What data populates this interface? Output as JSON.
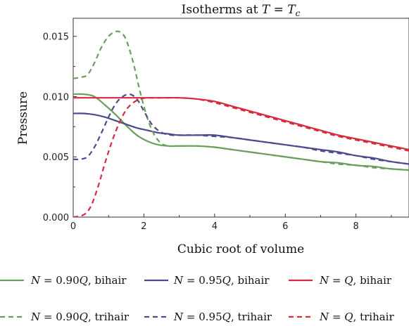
{
  "chart_data": {
    "type": "line",
    "title": "Isotherms at T = T_c",
    "title_parts": {
      "prefix": "Isotherms at ",
      "var1": "T",
      "eq": " = ",
      "var2": "T",
      "sub": "c"
    },
    "xlabel": "Cubic root of volume",
    "ylabel": "Pressure",
    "xlim": [
      0,
      9.5
    ],
    "ylim": [
      0,
      0.0165
    ],
    "x_ticks": [
      0,
      2,
      4,
      6,
      8
    ],
    "x_tick_labels": [
      "0",
      "2",
      "4",
      "6",
      "8"
    ],
    "y_ticks": [
      0,
      0.005,
      0.01,
      0.015
    ],
    "y_tick_labels": [
      "0.000",
      "0.005",
      "0.010",
      "0.015"
    ],
    "grid": false,
    "legend_position": "bottom",
    "colors": {
      "green": "#6a9e5e",
      "blue": "#4b4c8f",
      "red": "#d62a3d"
    },
    "series": [
      {
        "name": "N = 0.90Q, bihair",
        "label_parts": {
          "var": "N",
          "mid": " = 0.90",
          "var2": "Q",
          "suffix": ", bihair"
        },
        "color": "green",
        "style": "solid",
        "x": [
          0,
          0.3,
          0.6,
          0.9,
          1.2,
          1.5,
          1.8,
          2.1,
          2.4,
          2.7,
          3.0,
          3.5,
          4.0,
          4.5,
          5.0,
          5.5,
          6.0,
          6.5,
          7.0,
          7.5,
          8.0,
          8.5,
          9.0,
          9.5
        ],
        "y": [
          0.0102,
          0.0102,
          0.01,
          0.0093,
          0.0085,
          0.0076,
          0.0068,
          0.0063,
          0.006,
          0.0059,
          0.0059,
          0.0059,
          0.0058,
          0.0056,
          0.0054,
          0.0052,
          0.005,
          0.0048,
          0.0046,
          0.0045,
          0.0043,
          0.0042,
          0.004,
          0.0039
        ]
      },
      {
        "name": "N = 0.95Q, bihair",
        "label_parts": {
          "var": "N",
          "mid": " = 0.95",
          "var2": "Q",
          "suffix": ", bihair"
        },
        "color": "blue",
        "style": "solid",
        "x": [
          0,
          0.3,
          0.6,
          0.9,
          1.2,
          1.5,
          1.8,
          2.1,
          2.4,
          2.7,
          3.0,
          3.5,
          4.0,
          4.5,
          5.0,
          5.5,
          6.0,
          6.5,
          7.0,
          7.5,
          8.0,
          8.5,
          9.0,
          9.5
        ],
        "y": [
          0.0086,
          0.0086,
          0.0085,
          0.0083,
          0.008,
          0.0077,
          0.0074,
          0.0072,
          0.007,
          0.0069,
          0.0068,
          0.0068,
          0.0068,
          0.0066,
          0.0064,
          0.0062,
          0.006,
          0.0058,
          0.0056,
          0.0054,
          0.0051,
          0.0049,
          0.0046,
          0.0044
        ]
      },
      {
        "name": "N = Q, bihair",
        "label_parts": {
          "var": "N",
          "mid": " = ",
          "var2": "Q",
          "suffix": ", bihair"
        },
        "color": "red",
        "style": "solid",
        "x": [
          0,
          0.5,
          1.0,
          1.5,
          2.0,
          2.5,
          3.0,
          3.5,
          4.0,
          4.5,
          5.0,
          5.5,
          6.0,
          6.5,
          7.0,
          7.5,
          8.0,
          8.5,
          9.0,
          9.5
        ],
        "y": [
          0.0099,
          0.0099,
          0.0099,
          0.0099,
          0.0099,
          0.0099,
          0.0099,
          0.0098,
          0.0096,
          0.0092,
          0.0088,
          0.0084,
          0.008,
          0.0076,
          0.0072,
          0.0068,
          0.0065,
          0.0062,
          0.0059,
          0.0056
        ]
      },
      {
        "name": "N = 0.90Q, trihair",
        "label_parts": {
          "var": "N",
          "mid": " = 0.90",
          "var2": "Q",
          "suffix": ", trihair"
        },
        "color": "green",
        "style": "dashed",
        "x": [
          0,
          0.2,
          0.4,
          0.6,
          0.8,
          1.0,
          1.2,
          1.35,
          1.5,
          1.7,
          1.9,
          2.1,
          2.3,
          2.5,
          2.7,
          3.0,
          3.5,
          4.0,
          4.5,
          5.0,
          5.5,
          6.0,
          6.5,
          7.0,
          7.5,
          8.0,
          8.5,
          9.0,
          9.5
        ],
        "y": [
          0.0115,
          0.0116,
          0.0118,
          0.0128,
          0.0141,
          0.015,
          0.0154,
          0.0153,
          0.0147,
          0.0128,
          0.0103,
          0.0082,
          0.0068,
          0.0061,
          0.0059,
          0.0059,
          0.0059,
          0.0058,
          0.0056,
          0.0054,
          0.0052,
          0.005,
          0.0048,
          0.0046,
          0.0044,
          0.0043,
          0.0041,
          0.004,
          0.0039
        ]
      },
      {
        "name": "N = 0.95Q, trihair",
        "label_parts": {
          "var": "N",
          "mid": " = 0.95",
          "var2": "Q",
          "suffix": ", trihair"
        },
        "color": "blue",
        "style": "dashed",
        "x": [
          0,
          0.2,
          0.4,
          0.6,
          0.8,
          1.0,
          1.2,
          1.4,
          1.6,
          1.8,
          2.0,
          2.2,
          2.4,
          2.6,
          2.8,
          3.0,
          3.5,
          4.0,
          4.5,
          5.0,
          5.5,
          6.0,
          6.5,
          7.0,
          7.5,
          8.0,
          8.5,
          9.0,
          9.5
        ],
        "y": [
          0.0048,
          0.0048,
          0.005,
          0.0058,
          0.007,
          0.0083,
          0.0094,
          0.01,
          0.0102,
          0.0098,
          0.0088,
          0.0078,
          0.0072,
          0.0069,
          0.0068,
          0.0068,
          0.0068,
          0.0067,
          0.0066,
          0.0064,
          0.0062,
          0.006,
          0.0058,
          0.0055,
          0.0053,
          0.0051,
          0.0048,
          0.0046,
          0.0044
        ]
      },
      {
        "name": "N = Q, trihair",
        "label_parts": {
          "var": "N",
          "mid": " = ",
          "var2": "Q",
          "suffix": ", trihair"
        },
        "color": "red",
        "style": "dashed",
        "x": [
          0,
          0.3,
          0.5,
          0.7,
          0.9,
          1.1,
          1.3,
          1.5,
          1.7,
          1.9,
          2.1,
          2.3,
          2.6,
          3.0,
          3.5,
          4.0,
          4.5,
          5.0,
          5.5,
          6.0,
          6.5,
          7.0,
          7.5,
          8.0,
          8.5,
          9.0,
          9.5
        ],
        "y": [
          0.0,
          0.0002,
          0.0009,
          0.0025,
          0.0045,
          0.0063,
          0.0078,
          0.0089,
          0.0095,
          0.0098,
          0.0099,
          0.0099,
          0.0099,
          0.0099,
          0.0098,
          0.0095,
          0.0091,
          0.0087,
          0.0083,
          0.0079,
          0.0075,
          0.0071,
          0.0067,
          0.0064,
          0.0061,
          0.0058,
          0.0055
        ]
      }
    ]
  }
}
